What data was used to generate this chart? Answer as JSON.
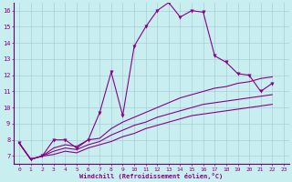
{
  "xlabel": "Windchill (Refroidissement éolien,°C)",
  "background_color": "#c8eef0",
  "line_color": "#880088",
  "xlim": [
    -0.5,
    23.5
  ],
  "ylim": [
    6.5,
    16.5
  ],
  "xticks": [
    0,
    1,
    2,
    3,
    4,
    5,
    6,
    7,
    8,
    9,
    10,
    11,
    12,
    13,
    14,
    15,
    16,
    17,
    18,
    19,
    20,
    21,
    22,
    23
  ],
  "yticks": [
    7,
    8,
    9,
    10,
    11,
    12,
    13,
    14,
    15,
    16
  ],
  "series": [
    [
      7.8,
      6.8,
      7.0,
      8.0,
      8.0,
      7.5,
      8.0,
      9.7,
      12.2,
      9.5,
      13.8,
      15.0,
      16.0,
      16.5,
      15.6,
      16.0,
      15.9,
      13.2,
      12.8,
      12.1,
      12.0,
      11.0,
      11.5
    ],
    [
      7.8,
      6.8,
      7.0,
      7.5,
      7.7,
      7.6,
      8.0,
      8.1,
      8.7,
      9.1,
      9.4,
      9.7,
      10.0,
      10.3,
      10.6,
      10.8,
      11.0,
      11.2,
      11.3,
      11.5,
      11.6,
      11.8,
      11.9
    ],
    [
      7.8,
      6.8,
      7.0,
      7.3,
      7.5,
      7.4,
      7.7,
      7.9,
      8.3,
      8.6,
      8.9,
      9.1,
      9.4,
      9.6,
      9.8,
      10.0,
      10.2,
      10.3,
      10.4,
      10.5,
      10.6,
      10.7,
      10.8
    ],
    [
      7.8,
      6.8,
      7.0,
      7.1,
      7.3,
      7.2,
      7.5,
      7.7,
      7.9,
      8.2,
      8.4,
      8.7,
      8.9,
      9.1,
      9.3,
      9.5,
      9.6,
      9.7,
      9.8,
      9.9,
      10.0,
      10.1,
      10.2
    ]
  ]
}
